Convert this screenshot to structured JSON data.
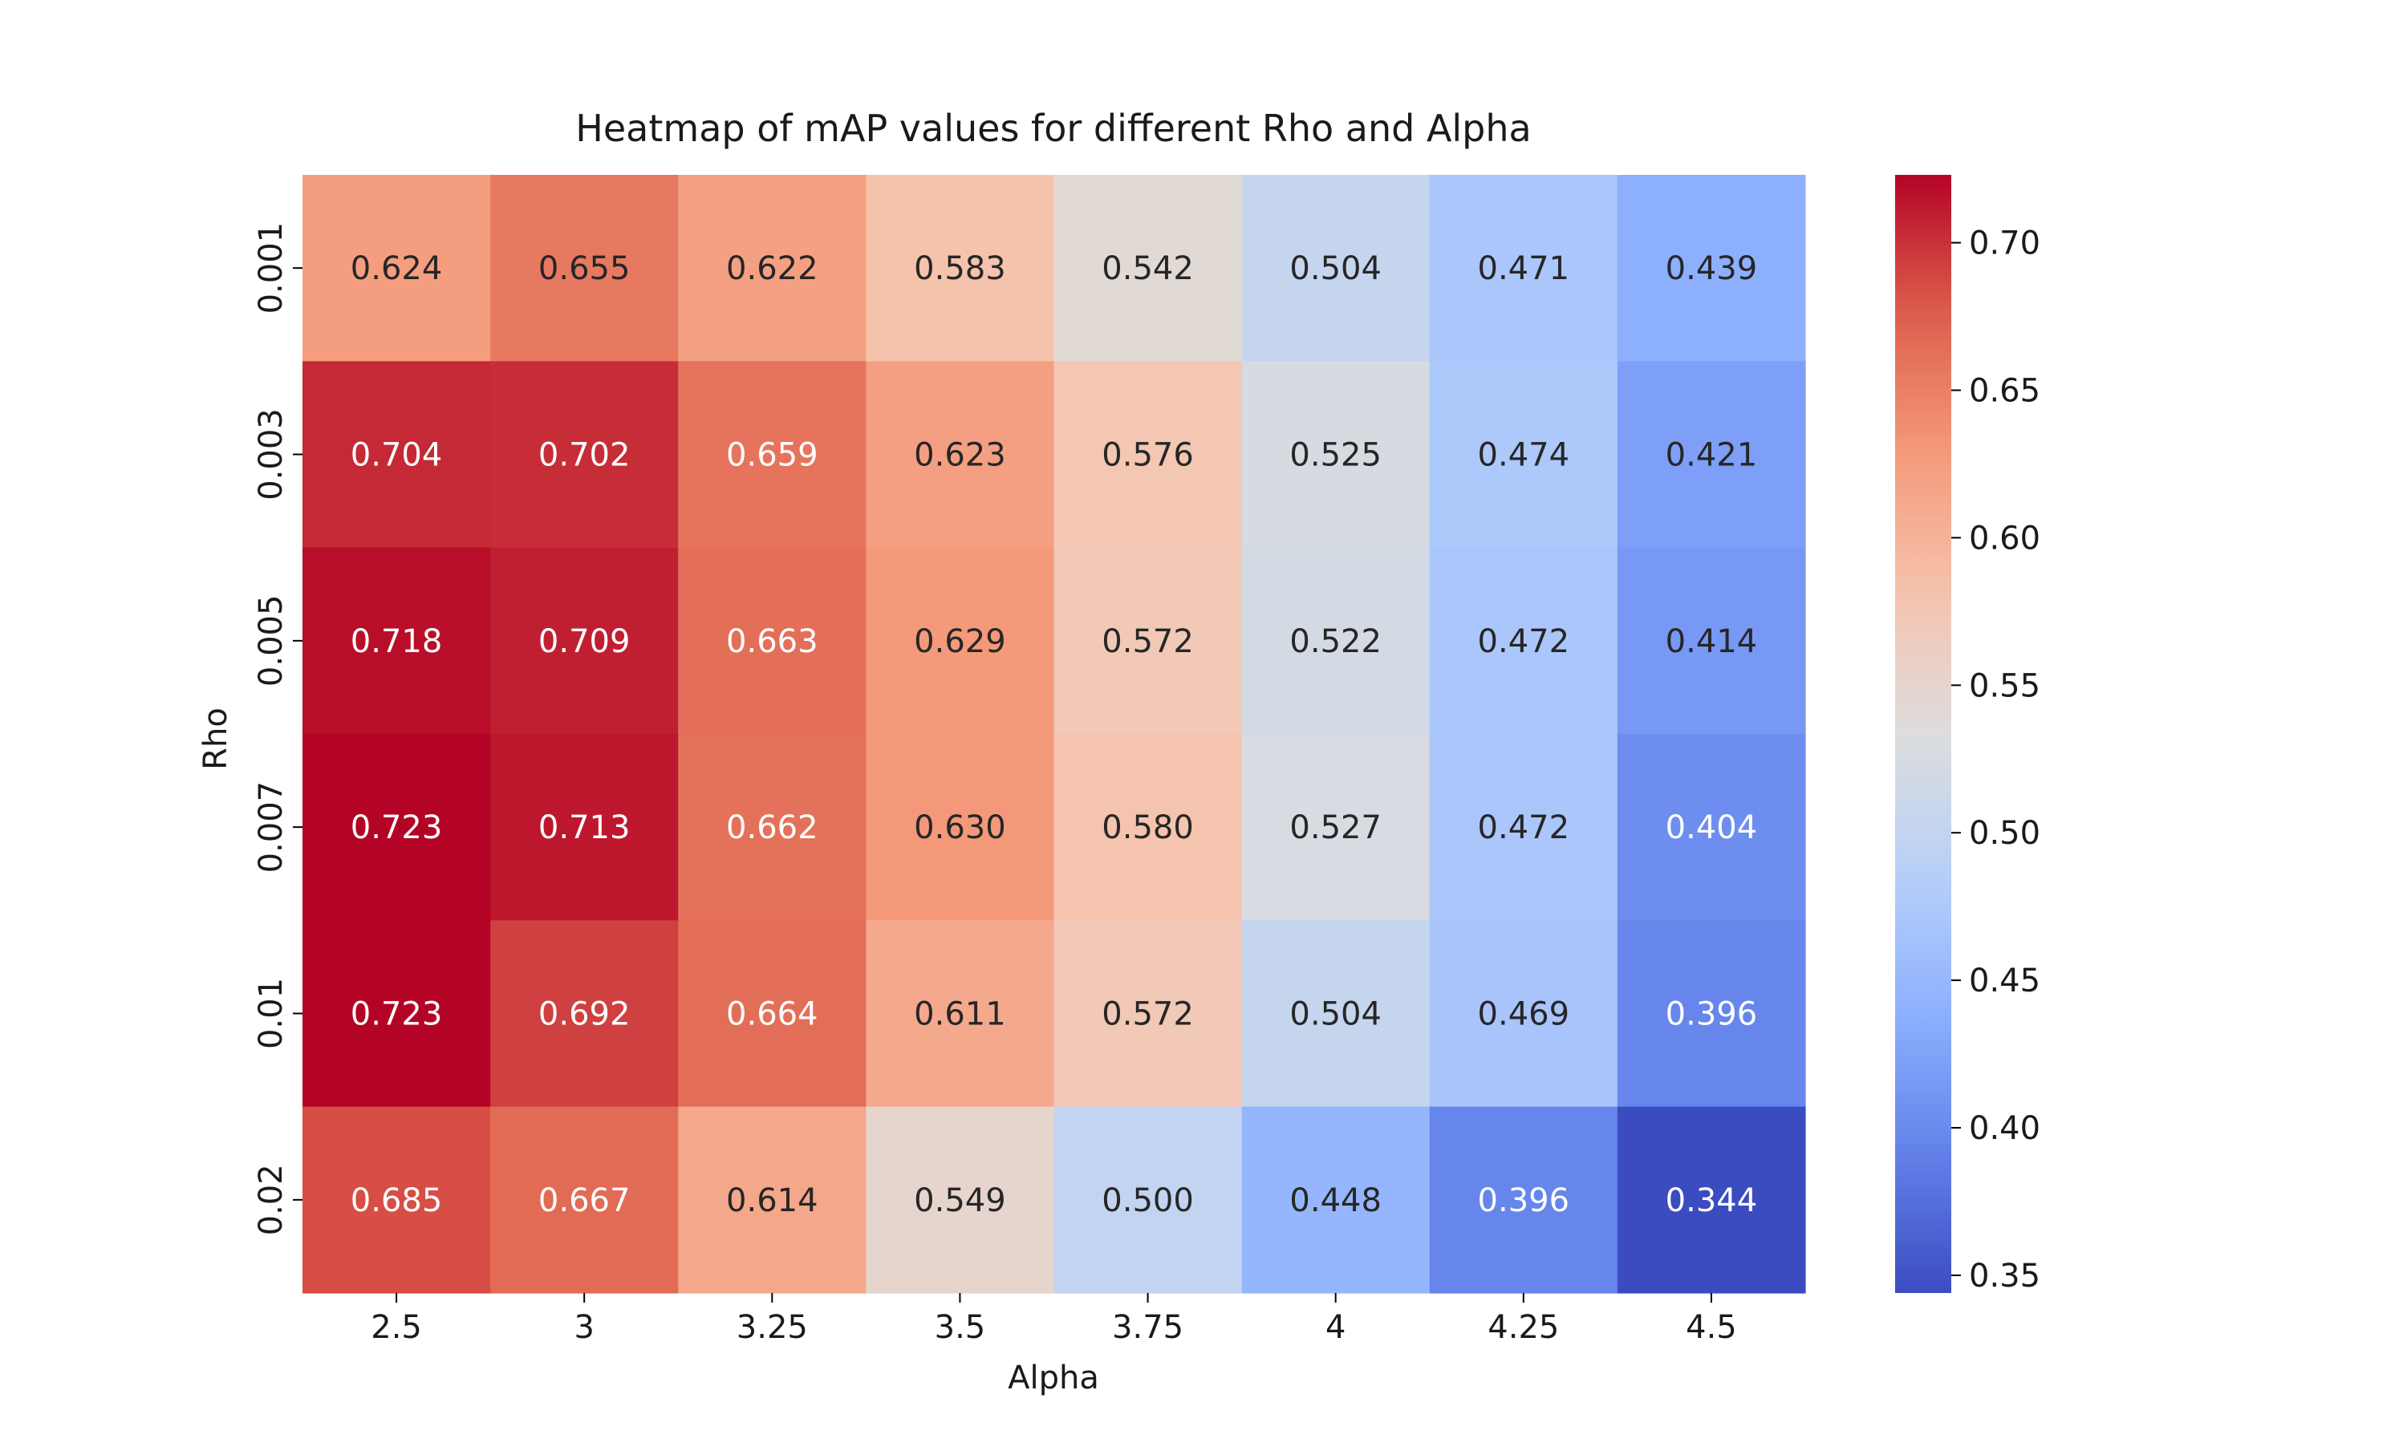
{
  "chart_data": {
    "type": "heatmap",
    "title": "Heatmap of mAP values for different Rho and Alpha",
    "xlabel": "Alpha",
    "ylabel": "Rho",
    "x_categories": [
      "2.5",
      "3",
      "3.25",
      "3.5",
      "3.75",
      "4",
      "4.25",
      "4.5"
    ],
    "y_categories": [
      "0.001",
      "0.003",
      "0.005",
      "0.007",
      "0.01",
      "0.02"
    ],
    "values": [
      [
        0.624,
        0.655,
        0.622,
        0.583,
        0.542,
        0.504,
        0.471,
        0.439
      ],
      [
        0.704,
        0.702,
        0.659,
        0.623,
        0.576,
        0.525,
        0.474,
        0.421
      ],
      [
        0.718,
        0.709,
        0.663,
        0.629,
        0.572,
        0.522,
        0.472,
        0.414
      ],
      [
        0.723,
        0.713,
        0.662,
        0.63,
        0.58,
        0.527,
        0.472,
        0.404
      ],
      [
        0.723,
        0.692,
        0.664,
        0.611,
        0.572,
        0.504,
        0.469,
        0.396
      ],
      [
        0.685,
        0.667,
        0.614,
        0.549,
        0.5,
        0.448,
        0.396,
        0.344
      ]
    ],
    "colorbar": {
      "colormap": "coolwarm",
      "vmin": 0.344,
      "vmax": 0.723,
      "ticks": [
        "0.35",
        "0.40",
        "0.45",
        "0.50",
        "0.55",
        "0.60",
        "0.65",
        "0.70"
      ]
    }
  }
}
